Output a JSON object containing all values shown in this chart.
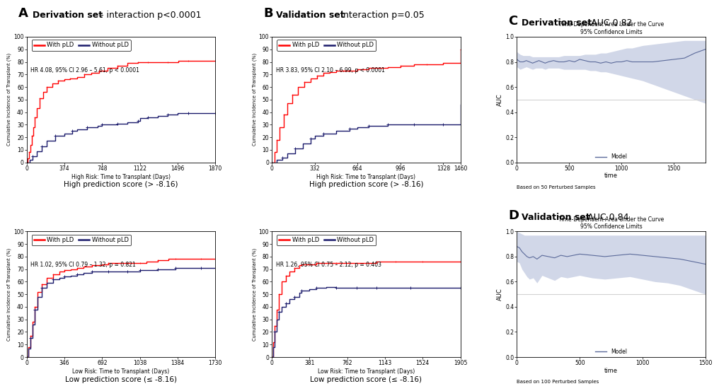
{
  "panel_A_title": "Derivation set",
  "panel_A_subtitle": " - interaction p<0.0001",
  "panel_B_title": "Validation set",
  "panel_B_subtitle": " - interaction p=0.05",
  "panel_C_title": "Derivation set",
  "panel_C_subtitle": " – AUC 0.82",
  "panel_D_title": "Validation set",
  "panel_D_subtitle": " – AUC 0.84",
  "high_risk_A_red_x": [
    0,
    10,
    20,
    35,
    50,
    65,
    80,
    100,
    130,
    160,
    200,
    250,
    310,
    370,
    430,
    500,
    570,
    640,
    720,
    800,
    900,
    1000,
    1100,
    1132,
    1200,
    1300,
    1400,
    1500,
    1600,
    1700,
    1870
  ],
  "high_risk_A_red_y": [
    0,
    3,
    8,
    14,
    21,
    28,
    36,
    43,
    51,
    56,
    60,
    63,
    65,
    66,
    67,
    68,
    70,
    71,
    73,
    75,
    77,
    79,
    80,
    80,
    80,
    80,
    80,
    81,
    81,
    81,
    81
  ],
  "high_risk_A_black_x": [
    0,
    30,
    60,
    100,
    150,
    200,
    280,
    374,
    450,
    500,
    600,
    700,
    748,
    800,
    900,
    1000,
    1100,
    1122,
    1200,
    1300,
    1400,
    1496,
    1600,
    1700,
    1870
  ],
  "high_risk_A_black_y": [
    0,
    2,
    5,
    9,
    13,
    17,
    21,
    23,
    25,
    26,
    28,
    29,
    30,
    30,
    31,
    32,
    33,
    35,
    36,
    37,
    38,
    39,
    39,
    39,
    39
  ],
  "high_risk_A_hr": "HR 4.08, 95% CI 2.96 – 5.61, p < 0.0001",
  "high_risk_A_xlabel": "High Risk: Time to Transplant (Days)",
  "high_risk_A_xticks": [
    0,
    374,
    748,
    1122,
    1496,
    1870
  ],
  "low_risk_A_red_x": [
    0,
    15,
    30,
    50,
    70,
    100,
    140,
    180,
    240,
    300,
    346,
    400,
    460,
    520,
    600,
    692,
    750,
    820,
    920,
    1020,
    1038,
    1100,
    1200,
    1300,
    1364,
    1500,
    1600,
    1730
  ],
  "low_risk_A_red_y": [
    0,
    8,
    17,
    28,
    40,
    52,
    58,
    63,
    66,
    68,
    69,
    70,
    71,
    72,
    73,
    74,
    75,
    75,
    75,
    75,
    75,
    76,
    77,
    78,
    78,
    78,
    78,
    78
  ],
  "low_risk_A_black_x": [
    0,
    15,
    30,
    50,
    70,
    100,
    140,
    180,
    240,
    300,
    346,
    400,
    460,
    520,
    600,
    692,
    750,
    820,
    920,
    1020,
    1038,
    1100,
    1200,
    1300,
    1364,
    1500,
    1600,
    1730
  ],
  "low_risk_A_black_y": [
    0,
    7,
    15,
    26,
    38,
    48,
    55,
    59,
    62,
    63,
    64,
    65,
    66,
    67,
    68,
    68,
    68,
    68,
    68,
    68,
    69,
    69,
    70,
    70,
    71,
    71,
    71,
    71
  ],
  "low_risk_A_hr": "HR 1.02, 95% CI 0.79 – 1.32, p = 0.821",
  "low_risk_A_xlabel": "Low Risk: Time to Transplant (Days)",
  "low_risk_A_xticks": [
    0,
    346,
    692,
    1038,
    1384,
    1730
  ],
  "high_risk_B_red_x": [
    0,
    20,
    40,
    60,
    90,
    120,
    160,
    200,
    250,
    300,
    350,
    400,
    450,
    500,
    550,
    600,
    664,
    750,
    830,
    900,
    996,
    1100,
    1200,
    1328,
    1460
  ],
  "high_risk_B_red_y": [
    0,
    8,
    18,
    28,
    38,
    47,
    54,
    60,
    64,
    67,
    69,
    71,
    72,
    73,
    73,
    73,
    74,
    75,
    75,
    76,
    77,
    78,
    78,
    79,
    90
  ],
  "high_risk_B_black_x": [
    0,
    40,
    80,
    120,
    180,
    240,
    300,
    332,
    400,
    500,
    600,
    664,
    750,
    850,
    900,
    996,
    1100,
    1200,
    1328,
    1460
  ],
  "high_risk_B_black_y": [
    0,
    2,
    4,
    7,
    11,
    15,
    19,
    21,
    23,
    25,
    27,
    28,
    29,
    29,
    30,
    30,
    30,
    30,
    30,
    46
  ],
  "high_risk_B_hr": "HR 3.83, 95% CI 2.10 – 6.99, p < 0.0001",
  "high_risk_B_xlabel": "High Risk: Time to Transplant (Days)",
  "high_risk_B_xticks": [
    0,
    332,
    664,
    996,
    1328,
    1460
  ],
  "low_risk_B_red_x": [
    0,
    15,
    30,
    50,
    70,
    100,
    140,
    180,
    230,
    280,
    301,
    380,
    450,
    550,
    650,
    762,
    860,
    960,
    1060,
    1143,
    1250,
    1400,
    1524,
    1700,
    1905
  ],
  "low_risk_B_red_y": [
    0,
    12,
    25,
    38,
    50,
    60,
    65,
    68,
    71,
    73,
    74,
    74,
    75,
    75,
    75,
    75,
    75,
    75,
    76,
    76,
    76,
    76,
    76,
    76,
    76
  ],
  "low_risk_B_black_x": [
    0,
    15,
    30,
    50,
    70,
    100,
    140,
    180,
    230,
    280,
    301,
    380,
    450,
    550,
    650,
    762,
    860,
    960,
    1060,
    1143,
    1400,
    1524,
    1905
  ],
  "low_risk_B_black_y": [
    0,
    8,
    20,
    30,
    36,
    40,
    43,
    46,
    48,
    51,
    53,
    54,
    55,
    56,
    55,
    55,
    55,
    55,
    55,
    55,
    55,
    55,
    55
  ],
  "low_risk_B_hr": "HR 1.26, 95% CI 0.75 – 2.12, p = 0.403",
  "low_risk_B_xlabel": "Low Risk: Time to Transplant (Days)",
  "low_risk_B_xticks": [
    0,
    381,
    762,
    1143,
    1524,
    1905
  ],
  "auc_C_inner_title": "Time-Dependent Area Under the Curve",
  "auc_C_subtitle": "95% Confidence Limits",
  "auc_C_x": [
    0,
    30,
    60,
    90,
    120,
    150,
    180,
    210,
    240,
    270,
    300,
    350,
    400,
    450,
    500,
    550,
    600,
    650,
    700,
    750,
    800,
    850,
    900,
    950,
    1000,
    1050,
    1100,
    1150,
    1200,
    1300,
    1400,
    1500,
    1600,
    1700,
    1800
  ],
  "auc_C_model": [
    0.82,
    0.8,
    0.8,
    0.81,
    0.8,
    0.79,
    0.8,
    0.81,
    0.8,
    0.79,
    0.8,
    0.81,
    0.8,
    0.8,
    0.81,
    0.8,
    0.82,
    0.81,
    0.8,
    0.8,
    0.79,
    0.8,
    0.79,
    0.8,
    0.8,
    0.81,
    0.8,
    0.8,
    0.8,
    0.8,
    0.81,
    0.82,
    0.83,
    0.87,
    0.9
  ],
  "auc_C_upper": [
    0.88,
    0.86,
    0.85,
    0.85,
    0.85,
    0.84,
    0.84,
    0.84,
    0.84,
    0.84,
    0.84,
    0.84,
    0.84,
    0.85,
    0.85,
    0.85,
    0.85,
    0.86,
    0.86,
    0.86,
    0.87,
    0.87,
    0.88,
    0.89,
    0.9,
    0.91,
    0.91,
    0.92,
    0.93,
    0.94,
    0.95,
    0.96,
    0.97,
    0.97,
    0.97
  ],
  "auc_C_lower": [
    0.76,
    0.74,
    0.75,
    0.76,
    0.75,
    0.74,
    0.75,
    0.75,
    0.75,
    0.74,
    0.75,
    0.75,
    0.75,
    0.74,
    0.74,
    0.74,
    0.74,
    0.74,
    0.73,
    0.73,
    0.72,
    0.72,
    0.71,
    0.7,
    0.69,
    0.68,
    0.67,
    0.66,
    0.65,
    0.62,
    0.59,
    0.56,
    0.53,
    0.5,
    0.47
  ],
  "auc_C_xlabel": "time",
  "auc_C_footnote": "Based on 50 Perturbed Samples",
  "auc_C_xlim": [
    0,
    1800
  ],
  "auc_D_inner_title": "Time-Dependent Area Under the Curve",
  "auc_D_subtitle": "95% Confidence Limits",
  "auc_D_x": [
    0,
    20,
    40,
    60,
    80,
    100,
    130,
    160,
    200,
    250,
    300,
    350,
    400,
    450,
    500,
    600,
    700,
    800,
    900,
    1000,
    1100,
    1200,
    1300,
    1500
  ],
  "auc_D_model": [
    0.88,
    0.87,
    0.84,
    0.82,
    0.8,
    0.79,
    0.8,
    0.78,
    0.81,
    0.8,
    0.79,
    0.81,
    0.8,
    0.81,
    0.82,
    0.81,
    0.8,
    0.81,
    0.82,
    0.81,
    0.8,
    0.79,
    0.78,
    0.74
  ],
  "auc_D_upper": [
    1.0,
    0.99,
    0.98,
    0.97,
    0.97,
    0.97,
    0.97,
    0.97,
    0.97,
    0.97,
    0.97,
    0.97,
    0.97,
    0.97,
    0.97,
    0.97,
    0.97,
    0.97,
    0.97,
    0.97,
    0.97,
    0.97,
    0.97,
    0.97
  ],
  "auc_D_lower": [
    0.76,
    0.75,
    0.7,
    0.67,
    0.64,
    0.62,
    0.63,
    0.59,
    0.65,
    0.63,
    0.61,
    0.64,
    0.63,
    0.64,
    0.65,
    0.63,
    0.62,
    0.63,
    0.64,
    0.62,
    0.6,
    0.59,
    0.57,
    0.5
  ],
  "auc_D_xlabel": "time",
  "auc_D_footnote": "Based on 100 Perturbed Samples",
  "auc_D_xlim": [
    0,
    1500
  ],
  "red_color": "#FF0000",
  "dark_navy": "#1A1A6B",
  "auc_fill_color": "#9BA8CC",
  "auc_line_color": "#5B6A9A",
  "bg_color": "#FFFFFF",
  "legend_with_pld": "With pLD",
  "legend_without_pld": "Without pLD",
  "ylabel_cumulative": "Cumulative Incidence of Transplant (%)",
  "model_label": "Model",
  "auc_ylabel": "AUC",
  "high_score_label_A": "High prediction score (> -8.16)",
  "low_score_label_A": "Low prediction score (≤ -8.16)",
  "high_score_label_B": "High prediction score (> -8.16)",
  "low_score_label_B": "Low prediction score (≤ -8.16)"
}
